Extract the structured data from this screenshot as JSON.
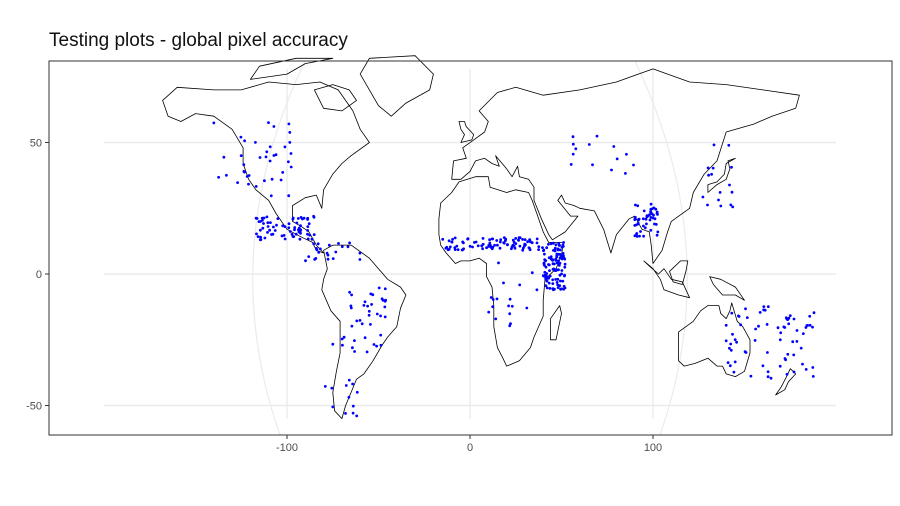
{
  "chart_data": {
    "type": "scatter",
    "title": "Testing plots - global pixel accuracy",
    "xlabel": "",
    "ylabel": "",
    "xlim": [
      -230,
      230
    ],
    "ylim": [
      -60,
      80
    ],
    "xticks": [
      -100,
      0,
      100
    ],
    "yticks": [
      -50,
      0,
      50
    ],
    "grid": true,
    "legend": "none",
    "point_color": "#0000ff",
    "coast_color": "#000000",
    "grid_color": "#ebebeb",
    "border_color": "#333333",
    "clusters": [
      {
        "region": "western-north-america",
        "lon": [
          -140,
          -95
        ],
        "lat": [
          28,
          60
        ],
        "n": 38
      },
      {
        "region": "mexico-central-america",
        "lon": [
          -117,
          -85
        ],
        "lat": [
          13,
          22
        ],
        "n": 70
      },
      {
        "region": "caribbean-northern-south-america",
        "lon": [
          -90,
          -60
        ],
        "lat": [
          5,
          12
        ],
        "n": 22
      },
      {
        "region": "central-south-america",
        "lon": [
          -75,
          -45
        ],
        "lat": [
          -30,
          -5
        ],
        "n": 40
      },
      {
        "region": "southern-south-america",
        "lon": [
          -80,
          -60
        ],
        "lat": [
          -55,
          -35
        ],
        "n": 12
      },
      {
        "region": "sahel",
        "lon": [
          -15,
          40
        ],
        "lat": [
          9,
          14
        ],
        "n": 90
      },
      {
        "region": "east-africa",
        "lon": [
          40,
          52
        ],
        "lat": [
          -6,
          12
        ],
        "n": 110
      },
      {
        "region": "central-southern-africa",
        "lon": [
          10,
          40
        ],
        "lat": [
          -20,
          5
        ],
        "n": 18
      },
      {
        "region": "india",
        "lon": [
          90,
          103
        ],
        "lat": [
          14,
          27
        ],
        "n": 50
      },
      {
        "region": "central-asia",
        "lon": [
          55,
          90
        ],
        "lat": [
          38,
          55
        ],
        "n": 14
      },
      {
        "region": "east-asia",
        "lon": [
          125,
          145
        ],
        "lat": [
          25,
          50
        ],
        "n": 16
      },
      {
        "region": "australia",
        "lon": [
          140,
          190
        ],
        "lat": [
          -40,
          -12
        ],
        "n": 70
      }
    ]
  }
}
